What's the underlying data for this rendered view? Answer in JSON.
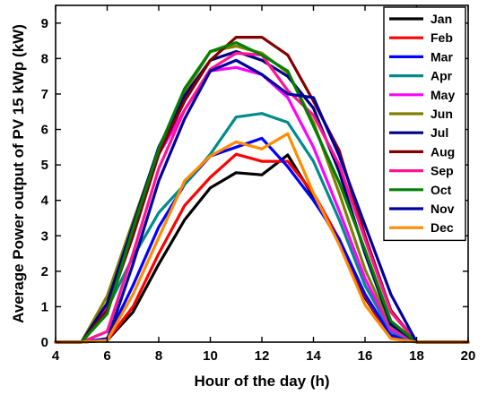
{
  "chart_data": {
    "type": "line",
    "title": "",
    "xlabel": "Hour of the day (h)",
    "ylabel": "Average Power output of PV 15 kWp (kW)",
    "xlim": [
      4,
      20
    ],
    "ylim": [
      0,
      9.5
    ],
    "xticks": [
      4,
      6,
      8,
      10,
      12,
      14,
      16,
      18,
      20
    ],
    "yticks": [
      0,
      1,
      2,
      3,
      4,
      5,
      6,
      7,
      8,
      9
    ],
    "grid": false,
    "legend": "top-right",
    "x": [
      4,
      5,
      6,
      7,
      8,
      9,
      10,
      11,
      12,
      13,
      14,
      15,
      16,
      17,
      18,
      19,
      20
    ],
    "series": [
      {
        "name": "Jan",
        "color": "#000000",
        "values": [
          0,
          0,
          0.05,
          0.85,
          2.2,
          3.45,
          4.35,
          4.78,
          4.72,
          5.28,
          4.1,
          2.8,
          1.25,
          0.15,
          0,
          0,
          0
        ]
      },
      {
        "name": "Feb",
        "color": "#ff0000",
        "values": [
          0,
          0,
          0.05,
          1.0,
          2.5,
          3.85,
          4.65,
          5.3,
          5.1,
          5.1,
          4.2,
          2.9,
          1.3,
          0.15,
          0,
          0,
          0
        ]
      },
      {
        "name": "Mar",
        "color": "#0000ff",
        "values": [
          0,
          0,
          0.1,
          1.6,
          3.25,
          4.45,
          5.25,
          5.5,
          5.75,
          4.95,
          4.0,
          2.9,
          1.35,
          0.2,
          0,
          0,
          0
        ]
      },
      {
        "name": "Apr",
        "color": "#008b8b",
        "values": [
          0,
          0,
          0.95,
          2.4,
          3.65,
          4.45,
          5.3,
          6.35,
          6.45,
          6.2,
          5.1,
          3.45,
          1.6,
          0.3,
          0,
          0,
          0
        ]
      },
      {
        "name": "May",
        "color": "#ff00ff",
        "values": [
          0,
          0,
          1.0,
          3.05,
          5.3,
          6.55,
          7.65,
          7.75,
          7.55,
          6.9,
          5.5,
          3.7,
          1.8,
          0.35,
          0,
          0,
          0
        ]
      },
      {
        "name": "Jun",
        "color": "#808000",
        "values": [
          0,
          0,
          1.3,
          3.4,
          5.45,
          7.05,
          8.2,
          8.35,
          8.15,
          7.6,
          6.2,
          4.2,
          2.05,
          0.45,
          0,
          0,
          0
        ]
      },
      {
        "name": "Jul",
        "color": "#000080",
        "values": [
          0,
          0,
          1.1,
          3.3,
          5.5,
          6.95,
          7.95,
          8.2,
          7.95,
          7.5,
          6.6,
          4.8,
          2.5,
          0.5,
          0,
          0,
          0
        ]
      },
      {
        "name": "Aug",
        "color": "#800000",
        "values": [
          0,
          0,
          0.9,
          3.0,
          5.3,
          6.8,
          7.95,
          8.6,
          8.6,
          8.1,
          6.8,
          5.4,
          3.0,
          0.9,
          0,
          0,
          0
        ]
      },
      {
        "name": "Sep",
        "color": "#ff1493",
        "values": [
          0,
          0,
          0.3,
          2.5,
          4.9,
          6.55,
          7.7,
          8.15,
          8.1,
          7.1,
          6.4,
          5.0,
          2.9,
          0.85,
          0,
          0,
          0
        ]
      },
      {
        "name": "Oct",
        "color": "#008000",
        "values": [
          0,
          0,
          0.8,
          3.2,
          5.45,
          7.15,
          8.2,
          8.45,
          8.1,
          7.65,
          6.1,
          4.5,
          2.6,
          0.6,
          0,
          0,
          0
        ]
      },
      {
        "name": "Nov",
        "color": "#0000a0",
        "values": [
          0,
          0,
          0.05,
          2.2,
          4.55,
          6.3,
          7.65,
          7.95,
          7.55,
          7.0,
          6.9,
          5.25,
          3.3,
          1.35,
          0,
          0,
          0
        ]
      },
      {
        "name": "Dec",
        "color": "#ff8c00",
        "values": [
          0,
          0,
          0.05,
          1.35,
          2.95,
          4.55,
          5.25,
          5.65,
          5.45,
          5.88,
          4.2,
          2.75,
          1.05,
          0.1,
          0,
          0,
          0
        ]
      }
    ]
  }
}
